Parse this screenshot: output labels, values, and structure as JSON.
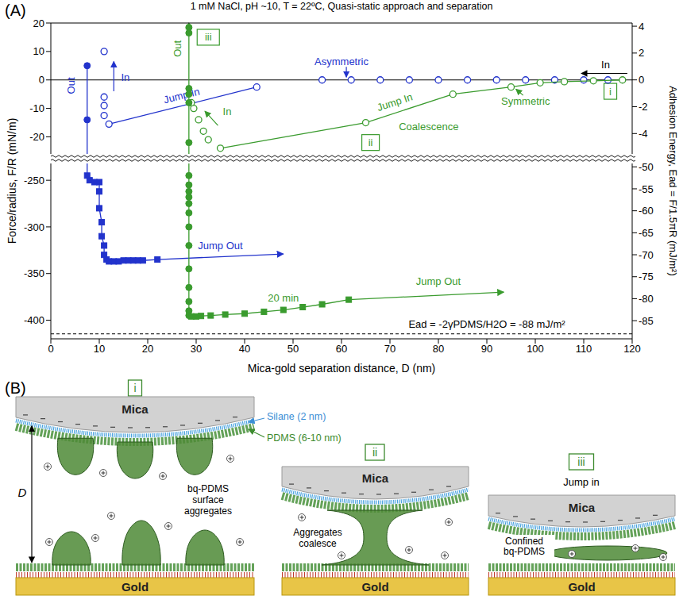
{
  "chart_data": [
    {
      "type": "scatter",
      "panel": "(A)",
      "title": "1 mM NaCl, pH ~10, T = 22ºC, Quasi-static approach and separation",
      "ylabel": "Force/radius, F/R (mN/m)",
      "y2label": "Adhesion Energy, Ead = F/1.5πR (mJ/m²)",
      "tick_labels": "y",
      "xlim": [
        0,
        120
      ],
      "xticks": [
        0,
        10,
        20,
        30,
        40,
        50,
        60,
        70,
        80,
        90,
        100,
        110,
        120
      ],
      "ylim": [
        -26,
        20
      ],
      "yticks": [
        -20,
        -10,
        0,
        10,
        20
      ],
      "y2lim": [
        -5.52,
        4.24
      ],
      "y2ticks": [
        -4,
        -2,
        0,
        2,
        4
      ],
      "reference_lines": [
        {
          "axis": "y",
          "value": 0,
          "color": "#000000",
          "line_style": "solid"
        }
      ],
      "series": [
        {
          "color": "#2233cc",
          "marker": "open_circle",
          "line_style": "none",
          "x": [
            115,
            110,
            104,
            98,
            92,
            86,
            80,
            74,
            68,
            62,
            56
          ],
          "values": [
            0,
            0,
            0,
            0,
            0,
            0,
            0,
            0,
            0,
            0,
            0
          ]
        },
        {
          "color": "#2233cc",
          "marker": "open_circle",
          "line_style": "solid",
          "x": [
            42.5,
            12
          ],
          "values": [
            -2.5,
            -15.5
          ]
        },
        {
          "color": "#2233cc",
          "marker": "open_circle",
          "line_style": "none",
          "x": [
            11,
            11,
            11,
            11
          ],
          "values": [
            -12.5,
            -9,
            -6,
            10
          ]
        },
        {
          "color": "#2233cc",
          "marker": "circle",
          "line_style": "solid",
          "x": [
            7.5,
            7.5
          ],
          "values": [
            5,
            -14
          ]
        },
        {
          "color": "#3a9b2e",
          "marker": "open_circle",
          "line_style": "solid",
          "x": [
            118,
            112,
            106,
            101,
            95,
            83,
            65,
            35
          ],
          "values": [
            0,
            -0.3,
            -0.6,
            -1,
            -2.5,
            -5,
            -15,
            -24
          ]
        },
        {
          "color": "#3a9b2e",
          "marker": "open_circle",
          "line_style": "none",
          "x": [
            32.5,
            31.5,
            30.5,
            29.5,
            29
          ],
          "values": [
            -21,
            -18,
            -14,
            -10,
            -8
          ]
        },
        {
          "color": "#3a9b2e",
          "marker": "circle",
          "line_style": "solid",
          "x": [
            28.5,
            28.5,
            28.5,
            28.5,
            28.5,
            28.5
          ],
          "values": [
            18.5,
            16.5,
            -3,
            -5,
            -8,
            -22
          ]
        }
      ],
      "annotations": [
        {
          "text": "In",
          "color": "#000000"
        },
        {
          "text": "Asymmetric",
          "color": "#2233cc"
        },
        {
          "text": "Out",
          "color": "#2233cc"
        },
        {
          "text": "In",
          "color": "#2233cc"
        },
        {
          "text": "Jump In",
          "color": "#2233cc"
        },
        {
          "text": "Out",
          "color": "#3a9b2e"
        },
        {
          "text": "iii",
          "color": "#3a9b2e"
        },
        {
          "text": "In",
          "color": "#3a9b2e"
        },
        {
          "text": "Jump In",
          "color": "#3a9b2e"
        },
        {
          "text": "Coalescence",
          "color": "#3a9b2e"
        },
        {
          "text": "ii",
          "color": "#3a9b2e"
        },
        {
          "text": "Symmetric",
          "color": "#3a9b2e"
        },
        {
          "text": "i",
          "color": "#3a9b2e"
        }
      ]
    },
    {
      "type": "scatter",
      "xlabel": "Mica-gold separation distance, D (nm)",
      "xlim": [
        0,
        120
      ],
      "xticks": [
        0,
        10,
        20,
        30,
        40,
        50,
        60,
        70,
        80,
        90,
        100,
        110,
        120
      ],
      "ylim": [
        -420,
        -232
      ],
      "yticks": [
        -400,
        -350,
        -300,
        -250
      ],
      "y2lim": [
        -89.13,
        -49.23
      ],
      "y2ticks": [
        -85,
        -80,
        -75,
        -70,
        -65,
        -60,
        -55,
        -50
      ],
      "reference_lines": [
        {
          "axis": "y2",
          "value": -88,
          "color": "#000000",
          "line_style": "dashed"
        }
      ],
      "series": [
        {
          "color": "#2233cc",
          "marker": "square",
          "line_style": "solid",
          "x": [
            7.5,
            8,
            9,
            10,
            10,
            10,
            10.5,
            10.5,
            11,
            11,
            11.5,
            12,
            13,
            14,
            15,
            16,
            17,
            18,
            19,
            22
          ],
          "values": [
            -245,
            -250,
            -252,
            -252,
            -262,
            -280,
            -295,
            -310,
            -320,
            -330,
            -335,
            -337,
            -337,
            -337,
            -336,
            -336,
            -336,
            -336,
            -336,
            -335
          ]
        },
        {
          "color": "#3a9b2e",
          "marker": "circle",
          "line_style": "solid",
          "x": [
            28.5,
            28.5,
            28.5,
            28.5,
            28.5,
            28.5,
            28.5,
            28.5,
            28.5,
            28.5,
            28.5,
            28.5,
            28.5
          ],
          "values": [
            -245,
            -255,
            -262,
            -268,
            -275,
            -285,
            -300,
            -320,
            -345,
            -365,
            -380,
            -390,
            -395
          ]
        },
        {
          "color": "#3a9b2e",
          "marker": "square",
          "line_style": "solid",
          "x": [
            29,
            30,
            31,
            33,
            36,
            40,
            44,
            48,
            52,
            56,
            61.5
          ],
          "values": [
            -396,
            -396,
            -395.5,
            -395,
            -394,
            -393,
            -391,
            -389,
            -386,
            -383,
            -378
          ]
        }
      ],
      "annotations": [
        {
          "text": "Jump Out",
          "color": "#2233cc"
        },
        {
          "text": "Jump Out",
          "color": "#3a9b2e"
        },
        {
          "text": "20 min",
          "color": "#3a9b2e"
        },
        {
          "text": "Ead = -2γPDMS/H2O = -88 mJ/m²",
          "color": "#000000"
        }
      ]
    }
  ],
  "diagram": {
    "label": "(B)",
    "panels": [
      {
        "label": "i",
        "top": "Mica",
        "bottom": "Gold",
        "silane": "Silane (2 nm)",
        "pdms": "PDMS (6-10 nm)",
        "aggregates": "bq-PDMS surface aggregates",
        "distance": "D"
      },
      {
        "label": "ii",
        "top": "Mica",
        "bottom": "Gold",
        "note": "Aggregates coalesce"
      },
      {
        "label": "iii",
        "top": "Mica",
        "bottom": "Gold",
        "heading": "Jump in",
        "note": "Confined bq-PDMS"
      }
    ]
  }
}
